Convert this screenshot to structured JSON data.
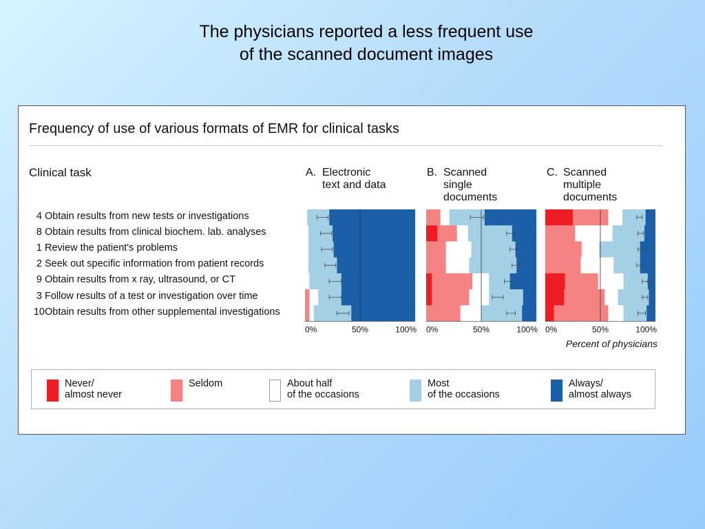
{
  "slide": {
    "title_line1": "The physicians reported a less frequent use",
    "title_line2": "of the scanned document images"
  },
  "figure": {
    "title": "Frequency of use of various formats of EMR for clinical tasks",
    "task_heading": "Clinical task",
    "x_axis_note": "Percent of physicians"
  },
  "panels": [
    {
      "letter": "A.",
      "title_lines": [
        "Electronic",
        "text and data"
      ]
    },
    {
      "letter": "B.",
      "title_lines": [
        "Scanned",
        "single",
        "documents"
      ]
    },
    {
      "letter": "C.",
      "title_lines": [
        "Scanned",
        "multiple",
        "documents"
      ]
    }
  ],
  "tasks": [
    {
      "num": "4",
      "text": "Obtain results from new tests or investigations"
    },
    {
      "num": "8",
      "text": "Obtain results from clinical biochem. lab. analyses"
    },
    {
      "num": "1",
      "text": "Review the patient's problems"
    },
    {
      "num": "2",
      "text": "Seek out specific information from patient records"
    },
    {
      "num": "9",
      "text": "Obtain results from x ray, ultrasound, or CT"
    },
    {
      "num": "3",
      "text": "Follow results of a test or investigation over time"
    },
    {
      "num": "10",
      "text": "Obtain results from other supplemental investigations"
    }
  ],
  "legend": [
    {
      "key": "never",
      "line1": "Never/",
      "line2": "almost never",
      "color": "#ee1d23"
    },
    {
      "key": "seldom",
      "line1": "Seldom",
      "line2": "",
      "color": "#f58383"
    },
    {
      "key": "half",
      "line1": "About half",
      "line2": "of the occasions",
      "color": "#ffffff"
    },
    {
      "key": "most",
      "line1": "Most",
      "line2": "of the occasions",
      "color": "#a4d0e6"
    },
    {
      "key": "always",
      "line1": "Always/",
      "line2": "almost always",
      "color": "#1b5fa8"
    }
  ],
  "chart_data": {
    "type": "bar",
    "orientation": "horizontal",
    "stacked": true,
    "unit": "Percent of physicians",
    "xlim": [
      0,
      100
    ],
    "x_ticks": [
      "0%",
      "50%",
      "100%"
    ],
    "reference_line": 50,
    "categories": [
      "Obtain results from new tests or investigations",
      "Obtain results from clinical biochem. lab. analyses",
      "Review the patient's problems",
      "Seek out specific information from patient records",
      "Obtain results from x ray, ultrasound, or CT",
      "Follow results of a test or investigation over time",
      "Obtain results from other supplemental investigations"
    ],
    "series_order": [
      "Never/almost never",
      "Seldom",
      "About half of the occasions",
      "Most of the occasions",
      "Always/almost always"
    ],
    "panels": [
      {
        "title": "A. Electronic text and data",
        "rows": [
          {
            "segments": [
              0,
              0,
              2,
              20,
              78
            ],
            "error": [
              11,
              21
            ]
          },
          {
            "segments": [
              0,
              0,
              3,
              22,
              75
            ],
            "error": [
              14,
              24
            ]
          },
          {
            "segments": [
              0,
              0,
              3,
              23,
              74
            ],
            "error": [
              15,
              25
            ]
          },
          {
            "segments": [
              0,
              0,
              3,
              26,
              71
            ],
            "error": [
              18,
              28
            ]
          },
          {
            "segments": [
              0,
              0,
              4,
              29,
              67
            ],
            "error": [
              22,
              33
            ]
          },
          {
            "segments": [
              0,
              4,
              8,
              21,
              67
            ],
            "error": [
              22,
              33
            ]
          },
          {
            "segments": [
              0,
              4,
              4,
              34,
              58
            ],
            "error": [
              29,
              40
            ]
          }
        ]
      },
      {
        "title": "B. Scanned single documents",
        "rows": [
          {
            "segments": [
              0,
              13,
              8,
              32,
              47
            ],
            "error": [
              40,
              52
            ]
          },
          {
            "segments": [
              10,
              18,
              10,
              40,
              22
            ],
            "error": [
              73,
              80
            ]
          },
          {
            "segments": [
              0,
              18,
              23,
              40,
              19
            ],
            "error": [
              76,
              83
            ]
          },
          {
            "segments": [
              0,
              18,
              21,
              43,
              18
            ],
            "error": [
              78,
              85
            ]
          },
          {
            "segments": [
              5,
              37,
              15,
              19,
              24
            ],
            "error": [
              71,
              79
            ]
          },
          {
            "segments": [
              5,
              34,
              18,
              31,
              12
            ],
            "error": [
              60,
              70
            ]
          },
          {
            "segments": [
              0,
              31,
              19,
              37,
              13
            ],
            "error": [
              73,
              81
            ]
          }
        ]
      },
      {
        "title": "C. Scanned multiple documents",
        "rows": [
          {
            "segments": [
              25,
              32,
              13,
              21,
              9
            ],
            "error": [
              83,
              88
            ]
          },
          {
            "segments": [
              0,
              27,
              34,
              29,
              10
            ],
            "error": [
              84,
              89
            ]
          },
          {
            "segments": [
              0,
              33,
              16,
              37,
              14
            ],
            "error": [
              84,
              91
            ]
          },
          {
            "segments": [
              0,
              32,
              30,
              24,
              14
            ],
            "error": [
              83,
              90
            ]
          },
          {
            "segments": [
              18,
              30,
              23,
              22,
              7
            ],
            "error": [
              88,
              93
            ]
          },
          {
            "segments": [
              17,
              37,
              12,
              28,
              6
            ],
            "error": [
              88,
              93
            ]
          },
          {
            "segments": [
              8,
              49,
              14,
              21,
              8
            ],
            "error": [
              84,
              91
            ]
          }
        ]
      }
    ]
  }
}
